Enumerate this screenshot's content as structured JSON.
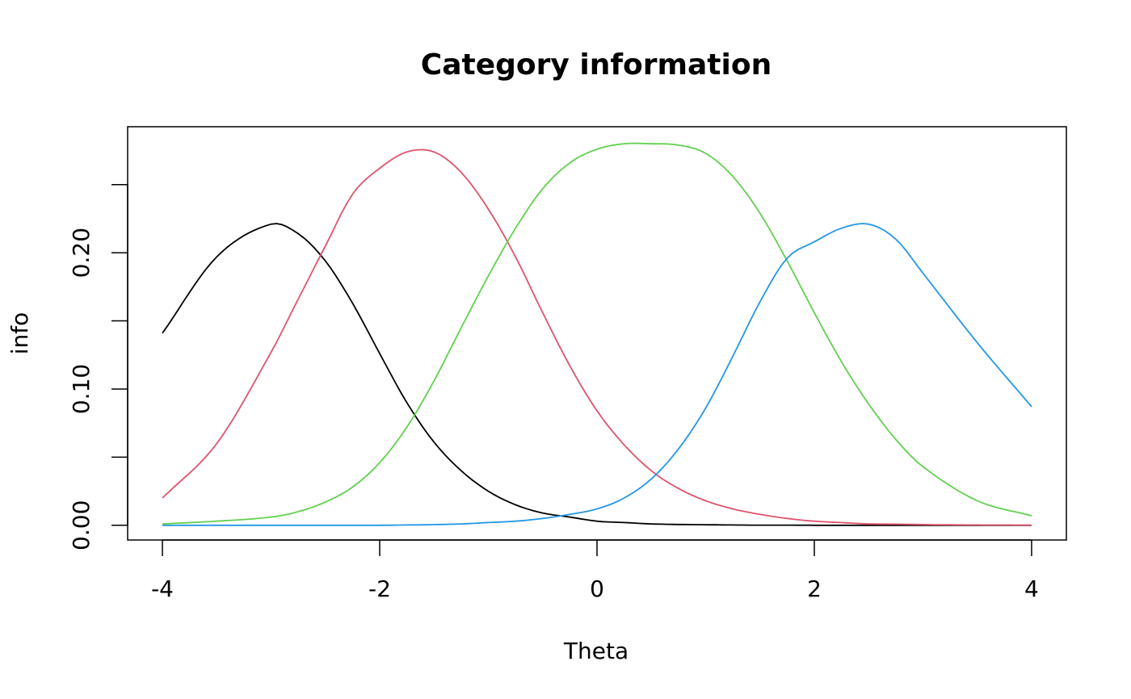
{
  "chart_data": {
    "type": "line",
    "title": "Category information",
    "xlabel": "Theta",
    "ylabel": "info",
    "xlim": [
      -4.32,
      4.32
    ],
    "ylim": [
      -0.0108,
      0.2925
    ],
    "x_ticks": [
      -4,
      -2,
      0,
      2,
      4
    ],
    "x_tick_labels": [
      "-4",
      "-2",
      "0",
      "2",
      "4"
    ],
    "y_ticks": [
      0.0,
      0.05,
      0.1,
      0.15,
      0.2,
      0.25
    ],
    "y_tick_labels": [
      "0.00",
      "",
      "0.10",
      "",
      "0.20",
      ""
    ],
    "grid": false,
    "legend": "none",
    "x": [
      -4.0,
      -3.5,
      -3.0,
      -2.75,
      -2.5,
      -2.25,
      -2.0,
      -1.75,
      -1.5,
      -1.25,
      -1.0,
      -0.75,
      -0.5,
      -0.25,
      0.0,
      0.25,
      0.5,
      0.75,
      1.0,
      1.25,
      1.5,
      1.75,
      2.0,
      2.25,
      2.5,
      2.75,
      3.0,
      3.5,
      4.0
    ],
    "series": [
      {
        "color": "#000000",
        "values": [
          0.141,
          0.197,
          0.221,
          0.214,
          0.194,
          0.163,
          0.126,
          0.09,
          0.061,
          0.04,
          0.025,
          0.015,
          0.009,
          0.006,
          0.003,
          0.002,
          0.001,
          0.0006,
          0.0004,
          0.0002,
          0.0001,
          0.0001,
          0.0,
          0.0,
          0.0,
          0.0,
          0.0,
          0.0,
          0.0
        ]
      },
      {
        "color": "#DF536B",
        "values": [
          0.02,
          0.06,
          0.127,
          0.166,
          0.205,
          0.243,
          0.262,
          0.274,
          0.274,
          0.259,
          0.232,
          0.197,
          0.156,
          0.117,
          0.084,
          0.059,
          0.04,
          0.027,
          0.018,
          0.012,
          0.008,
          0.005,
          0.003,
          0.002,
          0.001,
          0.0008,
          0.0005,
          0.0002,
          0.0001
        ]
      },
      {
        "color": "#61D04F",
        "values": [
          0.001,
          0.003,
          0.006,
          0.01,
          0.017,
          0.028,
          0.046,
          0.072,
          0.106,
          0.145,
          0.183,
          0.218,
          0.247,
          0.266,
          0.276,
          0.28,
          0.28,
          0.279,
          0.273,
          0.256,
          0.229,
          0.194,
          0.156,
          0.12,
          0.089,
          0.063,
          0.043,
          0.018,
          0.007
        ]
      },
      {
        "color": "#2297E6",
        "values": [
          0.0,
          0.0,
          0.0,
          0.0,
          0.0,
          0.0,
          0.0,
          0.0002,
          0.0005,
          0.001,
          0.002,
          0.003,
          0.005,
          0.008,
          0.012,
          0.02,
          0.034,
          0.056,
          0.086,
          0.124,
          0.164,
          0.196,
          0.208,
          0.218,
          0.221,
          0.21,
          0.185,
          0.134,
          0.087
        ]
      }
    ]
  }
}
